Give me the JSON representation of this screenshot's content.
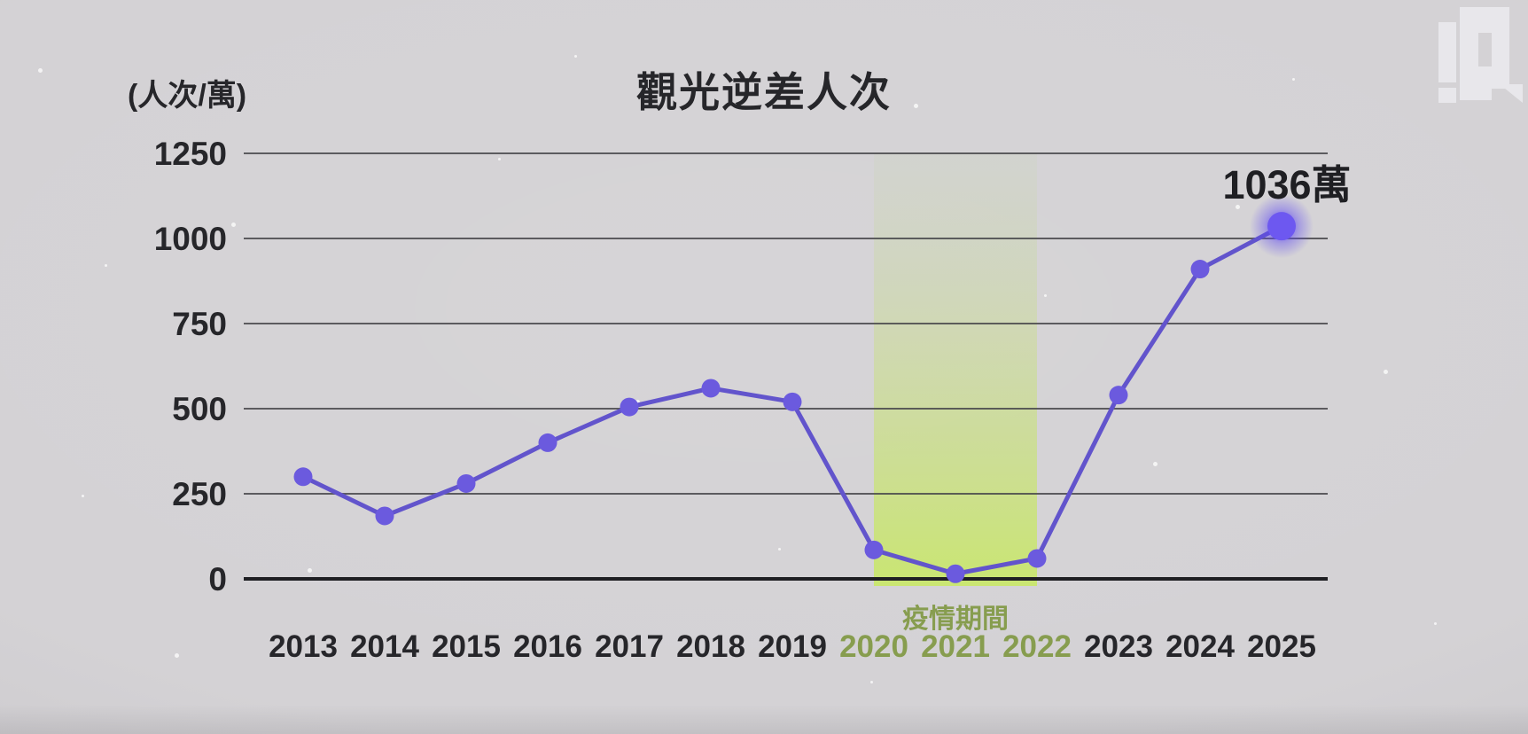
{
  "header": {
    "title": "觀光逆差人次",
    "unit_label": "(人次/萬)"
  },
  "icons": {
    "watermark": "p-news-watermark-logo"
  },
  "chart_data": {
    "type": "line",
    "title": "觀光逆差人次",
    "unit_label": "(人次/萬)",
    "categories": [
      "2013",
      "2014",
      "2015",
      "2016",
      "2017",
      "2018",
      "2019",
      "2020",
      "2021",
      "2022",
      "2023",
      "2024",
      "2025"
    ],
    "values": [
      300,
      185,
      280,
      400,
      505,
      560,
      520,
      85,
      15,
      60,
      540,
      910,
      1036
    ],
    "y_ticks": [
      0,
      250,
      500,
      750,
      1000,
      1250
    ],
    "ylim": [
      0,
      1250
    ],
    "grid": true,
    "legend": "none",
    "highlight_band": {
      "from": "2020",
      "to": "2022",
      "label": "疫情期間"
    },
    "annotation": {
      "text": "1036萬",
      "category": "2025",
      "value": 1036
    },
    "colors": {
      "background": "#d4d2d5",
      "line": "#6254cc",
      "point": "#6b5ade",
      "highlight_point": "#6d58f0",
      "highlight_glow": "#5b45f2",
      "grid": "#47474b",
      "axis": "#1f1f23",
      "text_dark": "#26262a",
      "pandemic_green": "#879d4f",
      "band_green_top": "rgba(190,214,150,0.10)",
      "band_green_mid": "rgba(198,224,118,0.40)",
      "band_green_bottom": "rgba(201,232,103,0.90)",
      "logo": "#e9e8ec"
    }
  }
}
